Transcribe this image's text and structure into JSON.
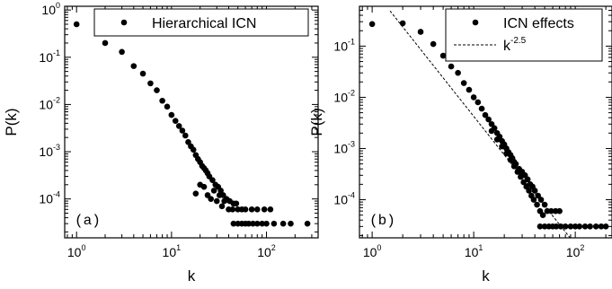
{
  "chart_data": [
    {
      "type": "scatter",
      "panel_label": "(a)",
      "xlabel": "k",
      "ylabel": "P(k)",
      "xscale": "log",
      "yscale": "log",
      "xlim": [
        0.75,
        350
      ],
      "ylim": [
        1.5e-05,
        1.2
      ],
      "x_ticks": [
        {
          "base": "10",
          "exp": "0",
          "value": 1
        },
        {
          "base": "10",
          "exp": "1",
          "value": 10
        },
        {
          "base": "10",
          "exp": "2",
          "value": 100
        }
      ],
      "y_ticks": [
        {
          "base": "10",
          "exp": "0",
          "value": 1
        },
        {
          "base": "10",
          "exp": "-1",
          "value": 0.1
        },
        {
          "base": "10",
          "exp": "-2",
          "value": 0.01
        },
        {
          "base": "10",
          "exp": "-3",
          "value": 0.001
        },
        {
          "base": "10",
          "exp": "-4",
          "value": 0.0001
        }
      ],
      "legend": {
        "position": "top-right",
        "entries": [
          {
            "label": "Hierarchical ICN",
            "marker": "dot"
          }
        ]
      },
      "grid": false,
      "series": [
        {
          "name": "Hierarchical ICN",
          "points": [
            [
              1,
              0.5
            ],
            [
              2,
              0.2
            ],
            [
              3,
              0.13
            ],
            [
              4,
              0.065
            ],
            [
              5,
              0.045
            ],
            [
              6,
              0.028
            ],
            [
              7,
              0.02
            ],
            [
              8,
              0.012
            ],
            [
              9,
              0.009
            ],
            [
              10,
              0.006
            ],
            [
              11,
              0.0045
            ],
            [
              12,
              0.0035
            ],
            [
              13,
              0.0028
            ],
            [
              14,
              0.0022
            ],
            [
              15,
              0.0016
            ],
            [
              16,
              0.0013
            ],
            [
              17,
              0.0011
            ],
            [
              18,
              0.00085
            ],
            [
              19,
              0.0007
            ],
            [
              20,
              0.0006
            ],
            [
              21,
              0.0005
            ],
            [
              22,
              0.00045
            ],
            [
              23,
              0.0004
            ],
            [
              24,
              0.00035
            ],
            [
              25,
              0.0003
            ],
            [
              27,
              0.00025
            ],
            [
              29,
              0.0002
            ],
            [
              31,
              0.00018
            ],
            [
              33,
              0.00015
            ],
            [
              35,
              0.00012
            ],
            [
              38,
              0.0001
            ],
            [
              41,
              9e-05
            ],
            [
              45,
              8e-05
            ],
            [
              50,
              6e-05
            ],
            [
              18,
              0.00013
            ],
            [
              20,
              0.0002
            ],
            [
              22,
              0.00018
            ],
            [
              24,
              0.00012
            ],
            [
              26,
              0.0001
            ],
            [
              28,
              0.00015
            ],
            [
              30,
              9e-05
            ],
            [
              32,
              0.00012
            ],
            [
              34,
              7e-05
            ],
            [
              36,
              9e-05
            ],
            [
              40,
              6e-05
            ],
            [
              44,
              6e-05
            ],
            [
              48,
              8e-05
            ],
            [
              55,
              6e-05
            ],
            [
              60,
              6e-05
            ],
            [
              70,
              6e-05
            ],
            [
              80,
              6e-05
            ],
            [
              95,
              6e-05
            ],
            [
              110,
              6e-05
            ],
            [
              45,
              3e-05
            ],
            [
              50,
              3e-05
            ],
            [
              55,
              3e-05
            ],
            [
              60,
              3e-05
            ],
            [
              65,
              3e-05
            ],
            [
              72,
              3e-05
            ],
            [
              80,
              3e-05
            ],
            [
              90,
              3e-05
            ],
            [
              100,
              3e-05
            ],
            [
              120,
              3e-05
            ],
            [
              150,
              3e-05
            ],
            [
              180,
              3e-05
            ],
            [
              270,
              3e-05
            ]
          ]
        }
      ]
    },
    {
      "type": "scatter",
      "panel_label": "(b)",
      "xlabel": "k",
      "ylabel": "P(k)",
      "xscale": "log",
      "yscale": "log",
      "xlim": [
        0.75,
        230
      ],
      "ylim": [
        1.8e-05,
        0.6
      ],
      "x_ticks": [
        {
          "base": "10",
          "exp": "0",
          "value": 1
        },
        {
          "base": "10",
          "exp": "1",
          "value": 10
        },
        {
          "base": "10",
          "exp": "2",
          "value": 100
        }
      ],
      "y_ticks": [
        {
          "base": "10",
          "exp": "-1",
          "value": 0.1
        },
        {
          "base": "10",
          "exp": "-2",
          "value": 0.01
        },
        {
          "base": "10",
          "exp": "-3",
          "value": 0.001
        },
        {
          "base": "10",
          "exp": "-4",
          "value": 0.0001
        }
      ],
      "legend": {
        "position": "top-right",
        "entries": [
          {
            "label": "ICN effects",
            "marker": "dot"
          },
          {
            "label": "k",
            "label_sup": "-2.5",
            "marker": "dashed-line"
          }
        ]
      },
      "grid": false,
      "fit_line": {
        "name": "k^-2.5",
        "exponent": -2.5,
        "x_range": [
          1.5,
          160
        ]
      },
      "series": [
        {
          "name": "ICN effects",
          "points": [
            [
              1,
              0.27
            ],
            [
              2,
              0.28
            ],
            [
              3,
              0.19
            ],
            [
              4,
              0.11
            ],
            [
              5,
              0.065
            ],
            [
              6,
              0.04
            ],
            [
              7,
              0.03
            ],
            [
              8,
              0.019
            ],
            [
              9,
              0.014
            ],
            [
              10,
              0.01
            ],
            [
              11,
              0.008
            ],
            [
              12,
              0.006
            ],
            [
              13,
              0.0045
            ],
            [
              14,
              0.0037
            ],
            [
              15,
              0.003
            ],
            [
              16,
              0.0025
            ],
            [
              17,
              0.002
            ],
            [
              18,
              0.0017
            ],
            [
              19,
              0.0014
            ],
            [
              20,
              0.0012
            ],
            [
              21,
              0.001
            ],
            [
              22,
              0.00085
            ],
            [
              23,
              0.00075
            ],
            [
              24,
              0.00065
            ],
            [
              25,
              0.00055
            ],
            [
              26,
              0.0005
            ],
            [
              28,
              0.0004
            ],
            [
              30,
              0.00035
            ],
            [
              32,
              0.0003
            ],
            [
              34,
              0.00025
            ],
            [
              36,
              0.0002
            ],
            [
              38,
              0.00018
            ],
            [
              40,
              0.00015
            ],
            [
              43,
              0.00012
            ],
            [
              46,
              0.0001
            ],
            [
              50,
              8e-05
            ],
            [
              15,
              0.0022
            ],
            [
              17,
              0.0015
            ],
            [
              19,
              0.0011
            ],
            [
              21,
              0.0008
            ],
            [
              23,
              0.0006
            ],
            [
              25,
              0.00045
            ],
            [
              27,
              0.00035
            ],
            [
              29,
              0.00028
            ],
            [
              31,
              0.00022
            ],
            [
              33,
              0.00018
            ],
            [
              35,
              0.00015
            ],
            [
              37,
              0.00012
            ],
            [
              39,
              0.0001
            ],
            [
              42,
              8e-05
            ],
            [
              45,
              6e-05
            ],
            [
              48,
              5e-05
            ],
            [
              53,
              6e-05
            ],
            [
              58,
              6e-05
            ],
            [
              64,
              6e-05
            ],
            [
              70,
              6e-05
            ],
            [
              45,
              3e-05
            ],
            [
              50,
              3e-05
            ],
            [
              55,
              3e-05
            ],
            [
              60,
              3e-05
            ],
            [
              65,
              3e-05
            ],
            [
              72,
              3e-05
            ],
            [
              80,
              3e-05
            ],
            [
              90,
              3e-05
            ],
            [
              100,
              3e-05
            ],
            [
              110,
              3e-05
            ],
            [
              125,
              3e-05
            ],
            [
              140,
              3e-05
            ],
            [
              160,
              3e-05
            ],
            [
              180,
              3e-05
            ],
            [
              200,
              3e-05
            ]
          ]
        }
      ]
    }
  ]
}
